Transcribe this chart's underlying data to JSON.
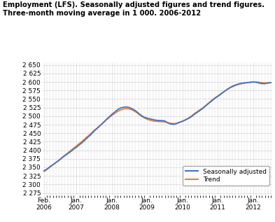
{
  "title_line1": "Employment (LFS). Seasonally adjusted figures and trend figures.",
  "title_line2": "Three-month moving average in 1 000. 2006-2012",
  "line_color_sa": "#4472C4",
  "line_color_trend": "#ED7D31",
  "legend_labels": [
    "Seasonally adjusted",
    "Trend"
  ],
  "ytick_values": [
    2275,
    2300,
    2325,
    2350,
    2375,
    2400,
    2425,
    2450,
    2475,
    2500,
    2525,
    2550,
    2575,
    2600,
    2625,
    2650
  ],
  "ytick_labels": [
    "2 275",
    "2 300",
    "2 325",
    "2 350",
    "2 375",
    "2 400",
    "2 425",
    "2 450",
    "2 475",
    "2 500",
    "2 525",
    "2 550",
    "2 575",
    "2 600",
    "2 625",
    "2 650"
  ],
  "ylim": [
    2268,
    2658
  ],
  "background_color": "#ffffff",
  "grid_color": "#cccccc",
  "x_tick_labels": [
    "Feb.\n2006",
    "Jan.\n2007",
    "Jan.\n2008",
    "Jan.\n2009",
    "Jan.\n2010",
    "Jan.\n2011",
    "Jan.\n2012"
  ],
  "x_tick_positions": [
    0,
    11,
    23,
    35,
    47,
    59,
    71
  ],
  "xlim": [
    -0.5,
    77.5
  ],
  "seasonally_adjusted": [
    2340,
    2345,
    2352,
    2358,
    2364,
    2370,
    2377,
    2384,
    2390,
    2396,
    2403,
    2409,
    2416,
    2423,
    2431,
    2439,
    2447,
    2456,
    2464,
    2472,
    2480,
    2489,
    2497,
    2505,
    2512,
    2519,
    2524,
    2526,
    2527,
    2525,
    2521,
    2516,
    2509,
    2502,
    2497,
    2494,
    2492,
    2490,
    2488,
    2487,
    2487,
    2486,
    2480,
    2477,
    2476,
    2478,
    2482,
    2485,
    2489,
    2493,
    2498,
    2505,
    2511,
    2517,
    2523,
    2531,
    2538,
    2545,
    2552,
    2558,
    2564,
    2571,
    2577,
    2583,
    2588,
    2591,
    2594,
    2596,
    2597,
    2598,
    2599,
    2600,
    2599,
    2597,
    2595,
    2595,
    2597,
    2598
  ],
  "trend": [
    2338,
    2344,
    2351,
    2357,
    2364,
    2371,
    2378,
    2385,
    2392,
    2399,
    2406,
    2413,
    2420,
    2427,
    2435,
    2442,
    2450,
    2458,
    2465,
    2473,
    2480,
    2488,
    2495,
    2502,
    2508,
    2514,
    2518,
    2521,
    2522,
    2521,
    2518,
    2513,
    2507,
    2500,
    2495,
    2491,
    2488,
    2486,
    2485,
    2484,
    2484,
    2483,
    2481,
    2479,
    2478,
    2479,
    2482,
    2485,
    2489,
    2494,
    2500,
    2507,
    2513,
    2519,
    2525,
    2532,
    2539,
    2547,
    2553,
    2559,
    2565,
    2571,
    2577,
    2582,
    2586,
    2590,
    2593,
    2595,
    2597,
    2598,
    2599,
    2600,
    2600,
    2599,
    2598,
    2597,
    2597,
    2598
  ]
}
